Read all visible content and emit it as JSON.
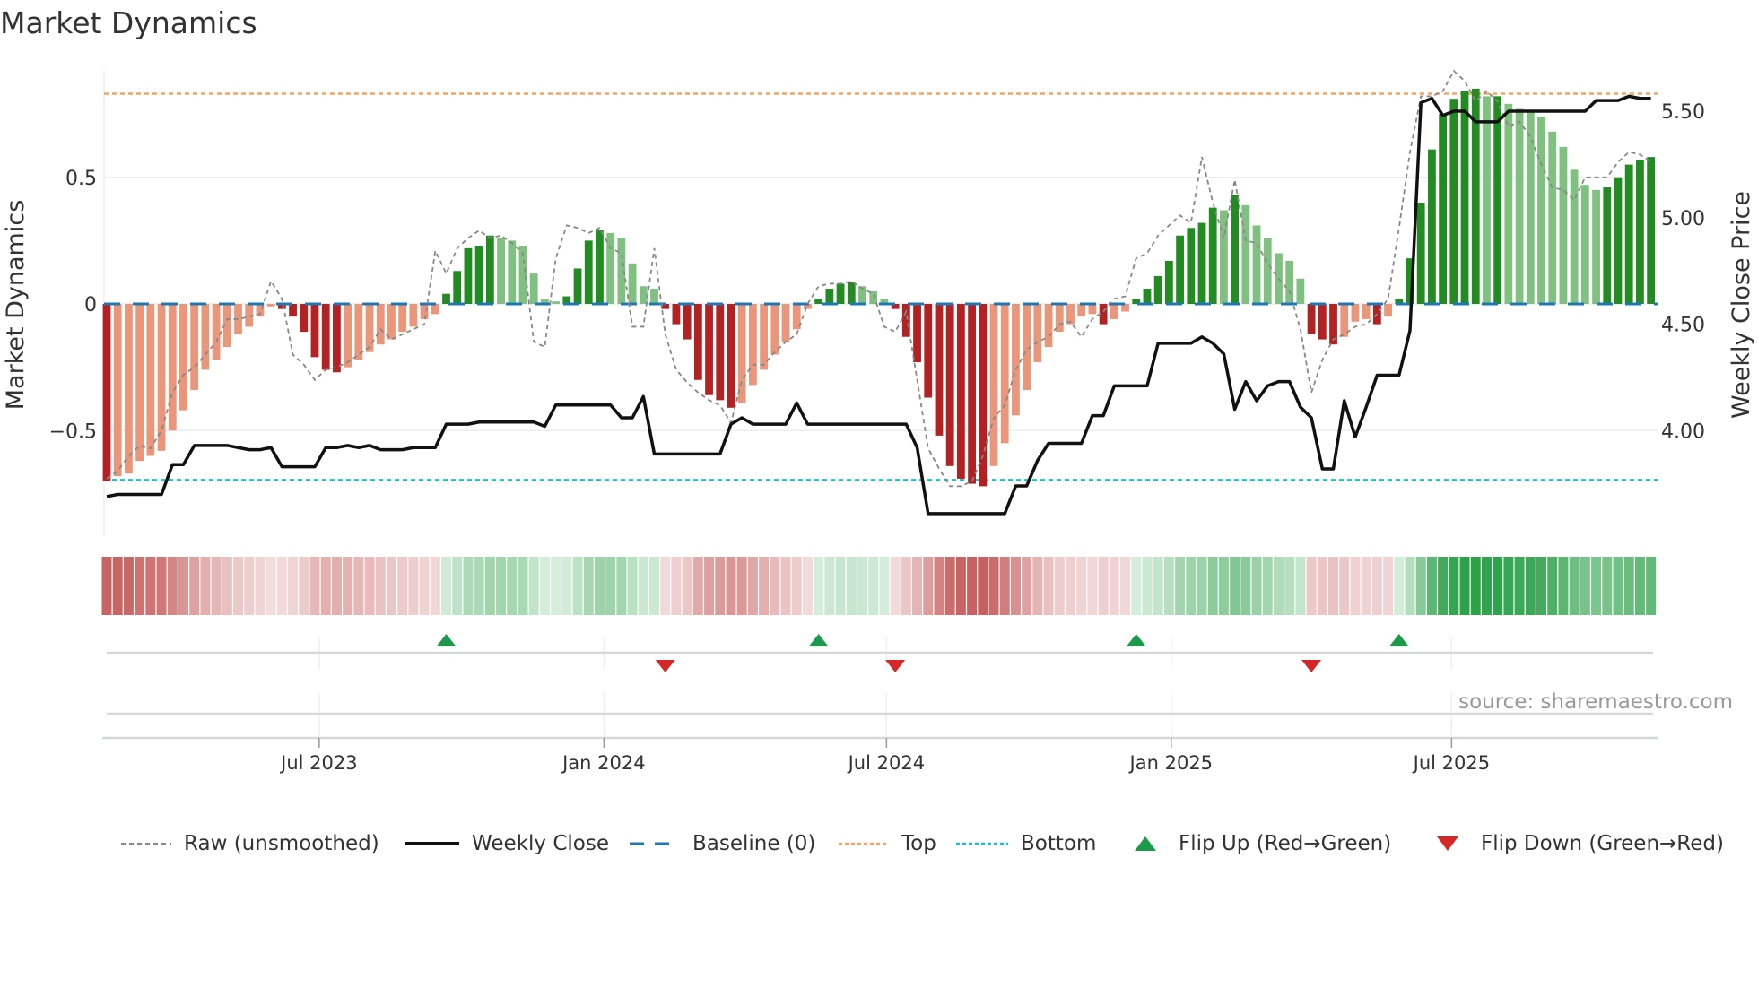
{
  "title": "Market Dynamics",
  "source": "source: sharemaestro.com",
  "legend": {
    "raw": "Raw (unsmoothed)",
    "close": "Weekly Close",
    "baseline": "Baseline (0)",
    "top": "Top",
    "bottom": "Bottom",
    "flip_up": "Flip Up (Red→Green)",
    "flip_down": "Flip Down (Green→Red)"
  },
  "colors": {
    "strong_red": "#b22222",
    "weak_red": "#e9967a",
    "strong_green": "#228b22",
    "weak_green": "#80c080",
    "baseline": "#1f77b4",
    "top": "#f4a460",
    "bottom": "#17becf",
    "flip_up": "#1a9a4a",
    "flip_down": "#d62728",
    "close": "#111111",
    "raw": "#888888"
  },
  "chart_data": {
    "type": "bar",
    "title": "Market Dynamics",
    "ylabel": "Market Dynamics",
    "y2label": "Weekly Close Price",
    "ylim": [
      -0.92,
      0.92
    ],
    "y2lim": [
      3.52,
      5.69
    ],
    "yticks": [
      {
        "v": 0.5,
        "label": "0.5"
      },
      {
        "v": 0,
        "label": "0"
      },
      {
        "v": -0.5,
        "label": "−0.5"
      }
    ],
    "y2ticks": [
      {
        "v": 5.5,
        "label": "5.50"
      },
      {
        "v": 5.0,
        "label": "5.00"
      },
      {
        "v": 4.5,
        "label": "4.50"
      },
      {
        "v": 4.0,
        "label": "4.00"
      }
    ],
    "xticks": [
      {
        "week": 19.4,
        "label": "Jul 2023"
      },
      {
        "week": 45.4,
        "label": "Jan 2024"
      },
      {
        "week": 71.2,
        "label": "Jul 2024"
      },
      {
        "week": 97.2,
        "label": "Jan 2025"
      },
      {
        "week": 122.8,
        "label": "Jul 2025"
      }
    ],
    "frequency": "weekly",
    "top": 0.83,
    "bottom": -0.695,
    "baseline": 0,
    "momentum": [
      -0.7,
      -0.68,
      -0.67,
      -0.62,
      -0.6,
      -0.58,
      -0.5,
      -0.42,
      -0.34,
      -0.26,
      -0.22,
      -0.17,
      -0.12,
      -0.09,
      -0.05,
      -0.01,
      -0.02,
      -0.05,
      -0.11,
      -0.21,
      -0.26,
      -0.27,
      -0.25,
      -0.22,
      -0.19,
      -0.16,
      -0.14,
      -0.11,
      -0.09,
      -0.06,
      -0.04,
      0.04,
      0.13,
      0.22,
      0.23,
      0.27,
      0.26,
      0.25,
      0.23,
      0.12,
      0.02,
      0.01,
      0.03,
      0.14,
      0.25,
      0.29,
      0.28,
      0.26,
      0.16,
      0.07,
      0.06,
      -0.02,
      -0.08,
      -0.14,
      -0.3,
      -0.36,
      -0.38,
      -0.41,
      -0.39,
      -0.32,
      -0.26,
      -0.2,
      -0.15,
      -0.1,
      -0.02,
      0.02,
      0.06,
      0.08,
      0.085,
      0.07,
      0.05,
      0.02,
      -0.02,
      -0.13,
      -0.23,
      -0.37,
      -0.52,
      -0.64,
      -0.69,
      -0.71,
      -0.72,
      -0.64,
      -0.55,
      -0.44,
      -0.34,
      -0.23,
      -0.17,
      -0.11,
      -0.08,
      -0.05,
      -0.04,
      -0.08,
      -0.06,
      -0.03,
      0.02,
      0.06,
      0.11,
      0.17,
      0.27,
      0.3,
      0.32,
      0.38,
      0.37,
      0.43,
      0.39,
      0.31,
      0.26,
      0.2,
      0.17,
      0.1,
      -0.12,
      -0.14,
      -0.16,
      -0.13,
      -0.07,
      -0.06,
      -0.08,
      -0.05,
      0.02,
      0.18,
      0.4,
      0.61,
      0.75,
      0.81,
      0.84,
      0.85,
      0.82,
      0.82,
      0.79,
      0.77,
      0.76,
      0.74,
      0.68,
      0.62,
      0.53,
      0.47,
      0.45,
      0.46,
      0.5,
      0.55,
      0.57,
      0.58
    ],
    "raw": [
      -0.69,
      -0.66,
      -0.6,
      -0.56,
      -0.57,
      -0.5,
      -0.35,
      -0.28,
      -0.25,
      -0.2,
      -0.15,
      -0.06,
      -0.06,
      -0.05,
      -0.04,
      0.09,
      0.02,
      -0.2,
      -0.24,
      -0.3,
      -0.26,
      -0.25,
      -0.23,
      -0.2,
      -0.17,
      -0.1,
      -0.14,
      -0.12,
      -0.1,
      -0.08,
      0.21,
      0.12,
      0.22,
      0.26,
      0.29,
      0.26,
      0.27,
      0.24,
      0.2,
      -0.15,
      -0.17,
      0.18,
      0.31,
      0.3,
      0.28,
      0.3,
      0.22,
      0.2,
      -0.09,
      -0.09,
      0.22,
      -0.12,
      -0.26,
      -0.31,
      -0.35,
      -0.38,
      -0.4,
      -0.47,
      -0.3,
      -0.24,
      -0.24,
      -0.19,
      -0.15,
      -0.12,
      0.0,
      0.07,
      0.08,
      0.08,
      0.09,
      0.06,
      0.04,
      -0.09,
      -0.11,
      -0.03,
      -0.3,
      -0.57,
      -0.65,
      -0.72,
      -0.72,
      -0.7,
      -0.6,
      -0.45,
      -0.4,
      -0.26,
      -0.18,
      -0.15,
      -0.13,
      -0.08,
      -0.07,
      -0.13,
      -0.06,
      -0.03,
      0.02,
      0.03,
      0.18,
      0.2,
      0.27,
      0.31,
      0.35,
      0.32,
      0.58,
      0.4,
      0.26,
      0.49,
      0.25,
      0.24,
      0.16,
      0.1,
      0.05,
      -0.1,
      -0.35,
      -0.22,
      -0.14,
      -0.12,
      -0.09,
      -0.08,
      -0.04,
      0.02,
      0.3,
      0.6,
      0.82,
      0.82,
      0.84,
      0.92,
      0.88,
      0.8,
      0.84,
      0.8,
      0.7,
      0.72,
      0.66,
      0.55,
      0.46,
      0.45,
      0.41,
      0.5,
      0.5,
      0.5,
      0.56,
      0.6,
      0.59,
      0.56
    ],
    "close": [
      3.69,
      3.7,
      3.7,
      3.7,
      3.7,
      3.7,
      3.84,
      3.84,
      3.93,
      3.93,
      3.93,
      3.93,
      3.92,
      3.91,
      3.91,
      3.92,
      3.83,
      3.83,
      3.83,
      3.83,
      3.92,
      3.92,
      3.93,
      3.92,
      3.93,
      3.91,
      3.91,
      3.91,
      3.92,
      3.92,
      3.92,
      4.03,
      4.03,
      4.03,
      4.04,
      4.04,
      4.04,
      4.04,
      4.04,
      4.04,
      4.02,
      4.12,
      4.12,
      4.12,
      4.12,
      4.12,
      4.12,
      4.06,
      4.06,
      4.16,
      3.89,
      3.89,
      3.89,
      3.89,
      3.89,
      3.89,
      3.89,
      4.03,
      4.06,
      4.03,
      4.03,
      4.03,
      4.03,
      4.13,
      4.03,
      4.03,
      4.03,
      4.03,
      4.03,
      4.03,
      4.03,
      4.03,
      4.03,
      4.03,
      3.92,
      3.61,
      3.61,
      3.61,
      3.61,
      3.61,
      3.61,
      3.61,
      3.61,
      3.74,
      3.74,
      3.86,
      3.94,
      3.94,
      3.94,
      3.94,
      4.07,
      4.07,
      4.21,
      4.21,
      4.21,
      4.21,
      4.41,
      4.41,
      4.41,
      4.41,
      4.44,
      4.41,
      4.36,
      4.1,
      4.23,
      4.14,
      4.21,
      4.23,
      4.23,
      4.11,
      4.06,
      3.82,
      3.82,
      4.14,
      3.97,
      4.11,
      4.26,
      4.26,
      4.26,
      4.47,
      5.54,
      5.56,
      5.48,
      5.5,
      5.5,
      5.45,
      5.45,
      5.45,
      5.5,
      5.5,
      5.5,
      5.5,
      5.5,
      5.5,
      5.5,
      5.5,
      5.55,
      5.55,
      5.55,
      5.57,
      5.56,
      5.56
    ],
    "flips_up_week": [
      31,
      65,
      94,
      118
    ],
    "flips_down_week": [
      51,
      72,
      110
    ]
  }
}
